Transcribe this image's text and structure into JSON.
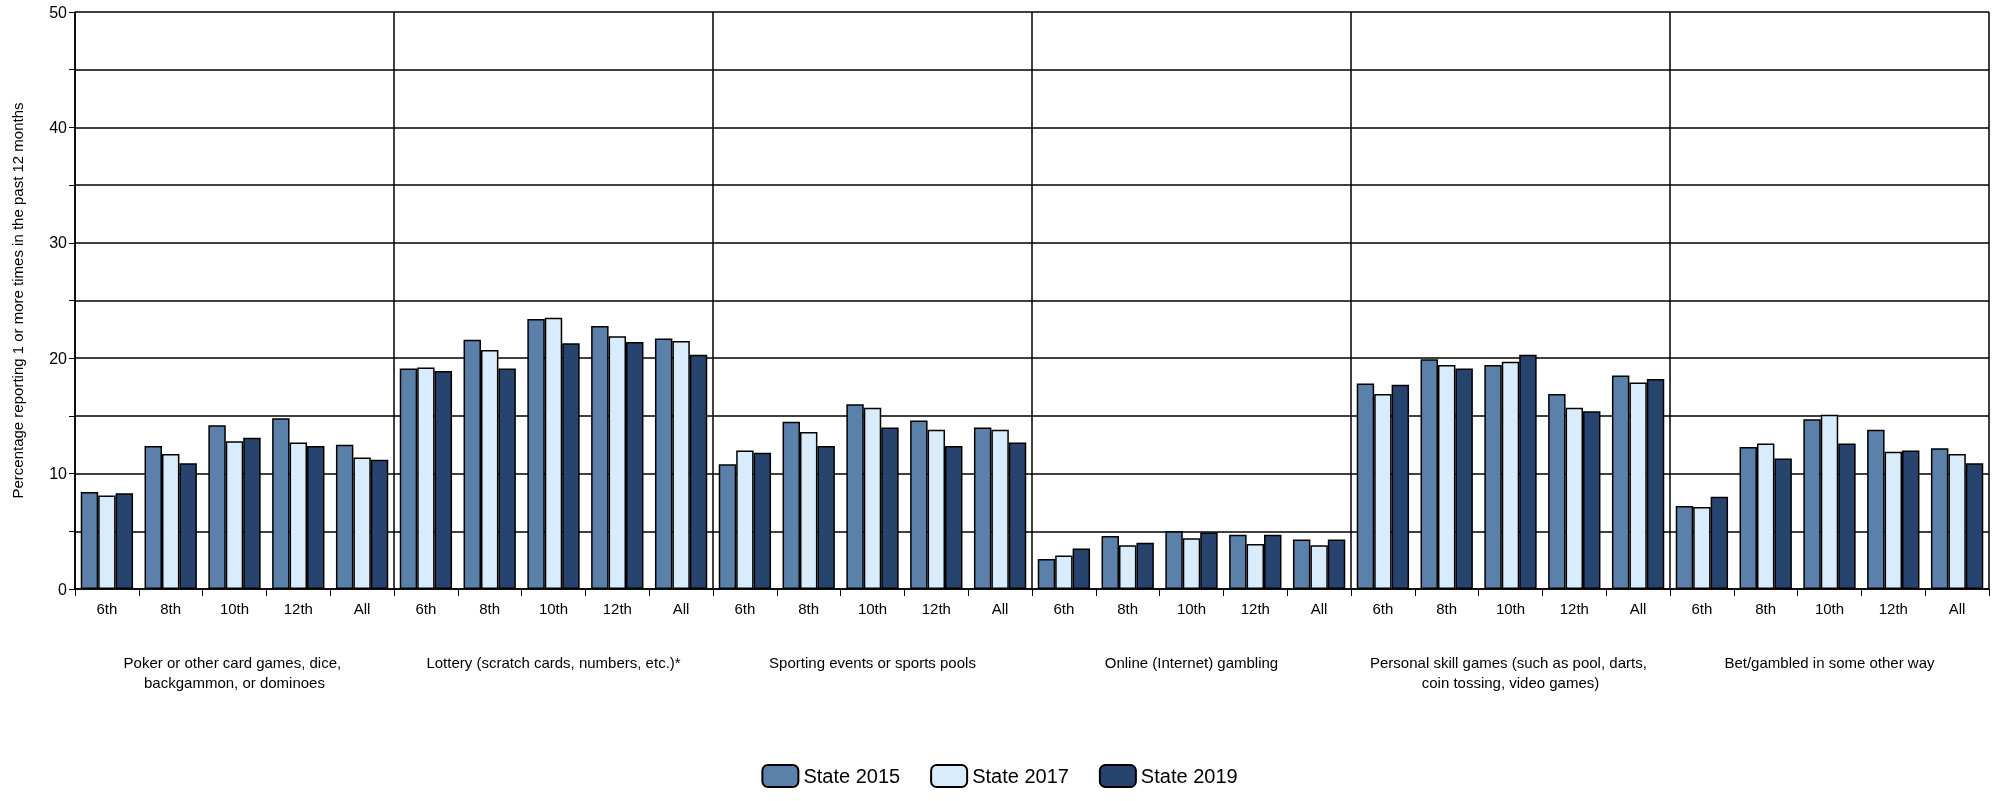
{
  "chart_data": {
    "type": "bar",
    "ylabel": "Percentage reporting 1 or more times in the past 12 months",
    "categories": [
      "6th",
      "8th",
      "10th",
      "12th",
      "All",
      "6th",
      "8th",
      "10th",
      "12th",
      "All",
      "6th",
      "8th",
      "10th",
      "12th",
      "All",
      "6th",
      "8th",
      "10th",
      "12th",
      "All",
      "6th",
      "8th",
      "10th",
      "12th",
      "All",
      "6th",
      "8th",
      "10th",
      "12th",
      "All"
    ],
    "annotations": [
      "Poker or other card games, dice, backgammon, or dominoes",
      "Lottery (scratch cards, numbers, etc.)*",
      "Sporting events or sports pools",
      "Online (Internet) gambling",
      "Personal skill games (such as pool, darts, coin tossing, video games)",
      "Bet/gambled in some other way"
    ],
    "series": [
      {
        "name": "State 2015",
        "color": "#5b80aa",
        "values": [
          8.4,
          12.4,
          14.2,
          14.8,
          12.5,
          19.1,
          21.6,
          23.4,
          22.8,
          21.7,
          10.8,
          14.5,
          16.0,
          14.6,
          14.0,
          2.6,
          4.6,
          5.0,
          4.7,
          4.3,
          17.8,
          19.9,
          19.4,
          16.9,
          18.5,
          7.2,
          12.3,
          14.7,
          13.8,
          12.2
        ]
      },
      {
        "name": "State 2017",
        "color": "#d9ecfb",
        "values": [
          8.1,
          11.7,
          12.8,
          12.7,
          11.4,
          19.2,
          20.7,
          23.5,
          21.9,
          21.5,
          12.0,
          13.6,
          15.7,
          13.8,
          13.8,
          2.9,
          3.8,
          4.4,
          3.9,
          3.8,
          16.9,
          19.4,
          19.7,
          15.7,
          17.9,
          7.1,
          12.6,
          15.1,
          11.9,
          11.7
        ]
      },
      {
        "name": "State 2019",
        "color": "#27446e",
        "values": [
          8.3,
          10.9,
          13.1,
          12.4,
          11.2,
          18.9,
          19.1,
          21.3,
          21.4,
          20.3,
          11.8,
          12.4,
          14.0,
          12.4,
          12.7,
          3.5,
          4.0,
          4.9,
          4.7,
          4.3,
          17.7,
          19.1,
          20.3,
          15.4,
          18.2,
          8.0,
          11.3,
          12.6,
          12.0,
          10.9
        ]
      }
    ],
    "ylim": [
      0,
      50
    ],
    "yticks": [
      0,
      {
        "value": 5,
        "label": null
      },
      10,
      {
        "value": 15,
        "label": null
      },
      20,
      {
        "value": 25,
        "label": null
      },
      30,
      {
        "value": 35,
        "label": null
      },
      40,
      {
        "value": 45,
        "label": null
      },
      50
    ],
    "grid": "y",
    "legend": "bottom"
  }
}
